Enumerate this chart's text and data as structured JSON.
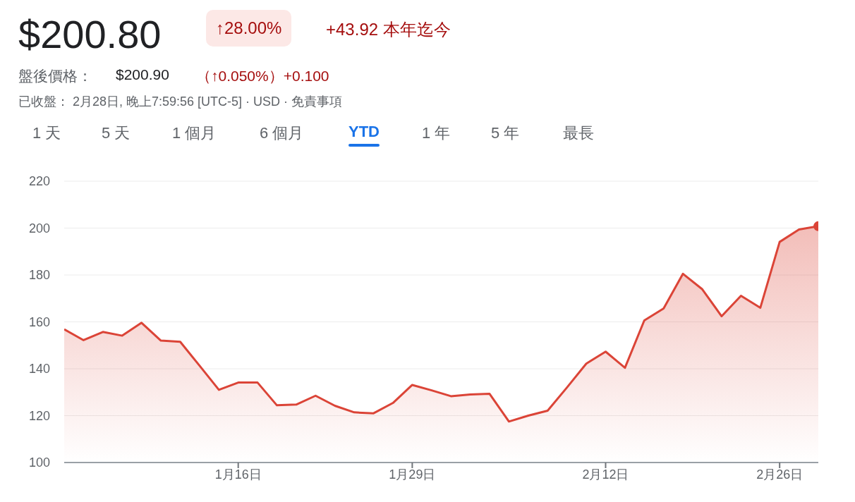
{
  "chart_data": {
    "type": "area",
    "title": "$200.80",
    "annotations": [
      "↑28.00%",
      "+43.92 本年迄今",
      "盤後價格：",
      "$200.90",
      "（↑0.050%）+0.100",
      "已收盤： 2月28日, 晚上7:59:56 [UTC-5] · USD · 免責事項",
      "1 天",
      "5 天",
      "1 個月",
      "6 個月",
      "YTD",
      "1 年",
      "5 年",
      "最長"
    ],
    "categories": [
      null,
      null,
      null,
      null,
      null,
      null,
      null,
      null,
      null,
      "1月16日",
      null,
      null,
      null,
      null,
      null,
      null,
      null,
      null,
      "1月29日",
      null,
      null,
      null,
      null,
      null,
      null,
      null,
      null,
      null,
      "2月12日",
      null,
      null,
      null,
      null,
      null,
      null,
      null,
      null,
      "2月26日",
      null,
      null
    ],
    "series": [
      {
        "color": "#db4437",
        "values": [
          156.8,
          152.2,
          155.7,
          154.1,
          159.6,
          152.0,
          151.5,
          141.3,
          131.0,
          134.1,
          134.1,
          124.4,
          124.7,
          128.5,
          124.2,
          121.4,
          121.0,
          125.4,
          133.1,
          130.8,
          128.3,
          129.0,
          129.3,
          117.5,
          120.0,
          122.1,
          132.0,
          142.2,
          147.3,
          140.4,
          160.6,
          165.7,
          180.5,
          173.9,
          162.4,
          171.1,
          166.0,
          194.1,
          199.4,
          200.8
        ]
      }
    ],
    "ylim": [
      100,
      220
    ],
    "yticks": [
      100,
      120,
      140,
      160,
      180,
      200,
      220
    ],
    "grid": "y"
  }
}
